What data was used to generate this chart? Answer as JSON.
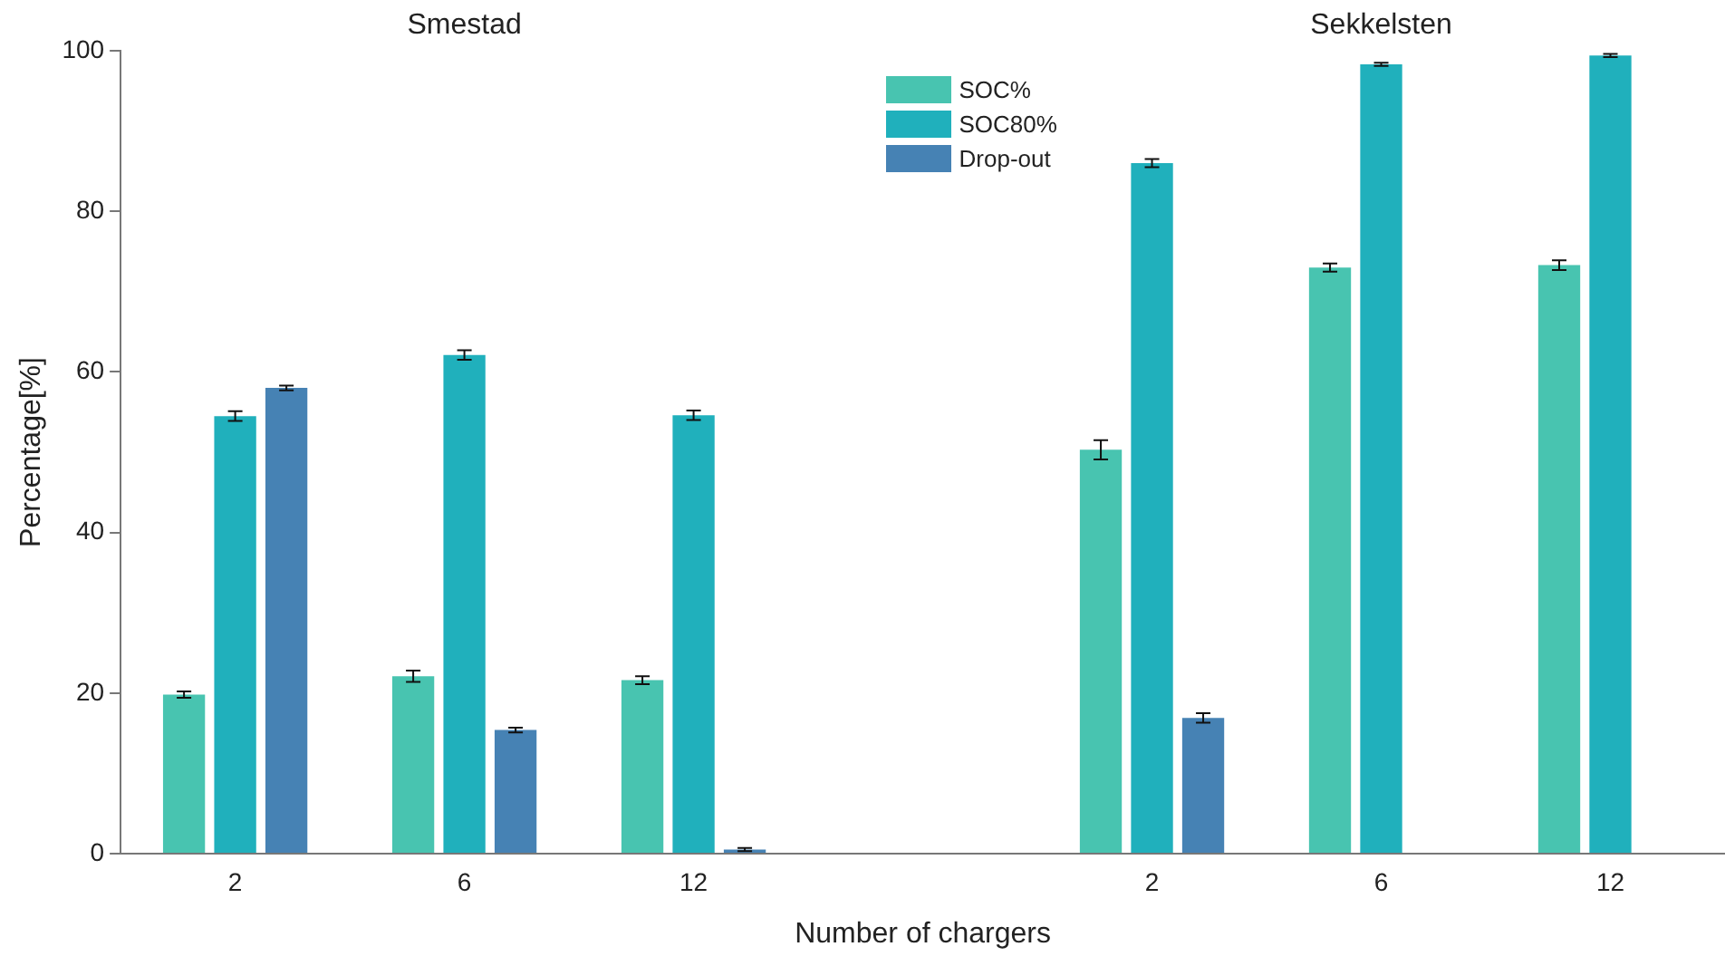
{
  "chart_data": {
    "type": "bar",
    "xlabel": "Number of chargers",
    "ylabel": "Percentage[%]",
    "categories": [
      "2",
      "6",
      "12",
      null,
      "2",
      "6",
      "12"
    ],
    "series": [
      {
        "name": "SOC%",
        "color": "#48c4b0",
        "values": [
          19.8,
          22.1,
          21.6,
          null,
          50.3,
          73.0,
          73.3
        ],
        "errors": [
          0.4,
          0.7,
          0.5,
          null,
          1.2,
          0.5,
          0.6
        ]
      },
      {
        "name": "SOC80%",
        "color": "#20b0bc",
        "values": [
          54.5,
          62.1,
          54.6,
          null,
          86.0,
          98.3,
          99.4
        ],
        "errors": [
          0.6,
          0.6,
          0.6,
          null,
          0.5,
          0.2,
          0.2
        ]
      },
      {
        "name": "Drop-out",
        "color": "#4682b4",
        "values": [
          58.0,
          15.4,
          0.5,
          null,
          16.9,
          0.0,
          0.0
        ],
        "errors": [
          0.3,
          0.3,
          0.2,
          null,
          0.6,
          null,
          null
        ]
      }
    ],
    "annotations": [
      "Smestad",
      "Sekkelsten"
    ],
    "ylim": [
      0,
      100
    ],
    "yticks": [
      0,
      20,
      40,
      60,
      80,
      100
    ],
    "grid": false,
    "legend": "top"
  }
}
